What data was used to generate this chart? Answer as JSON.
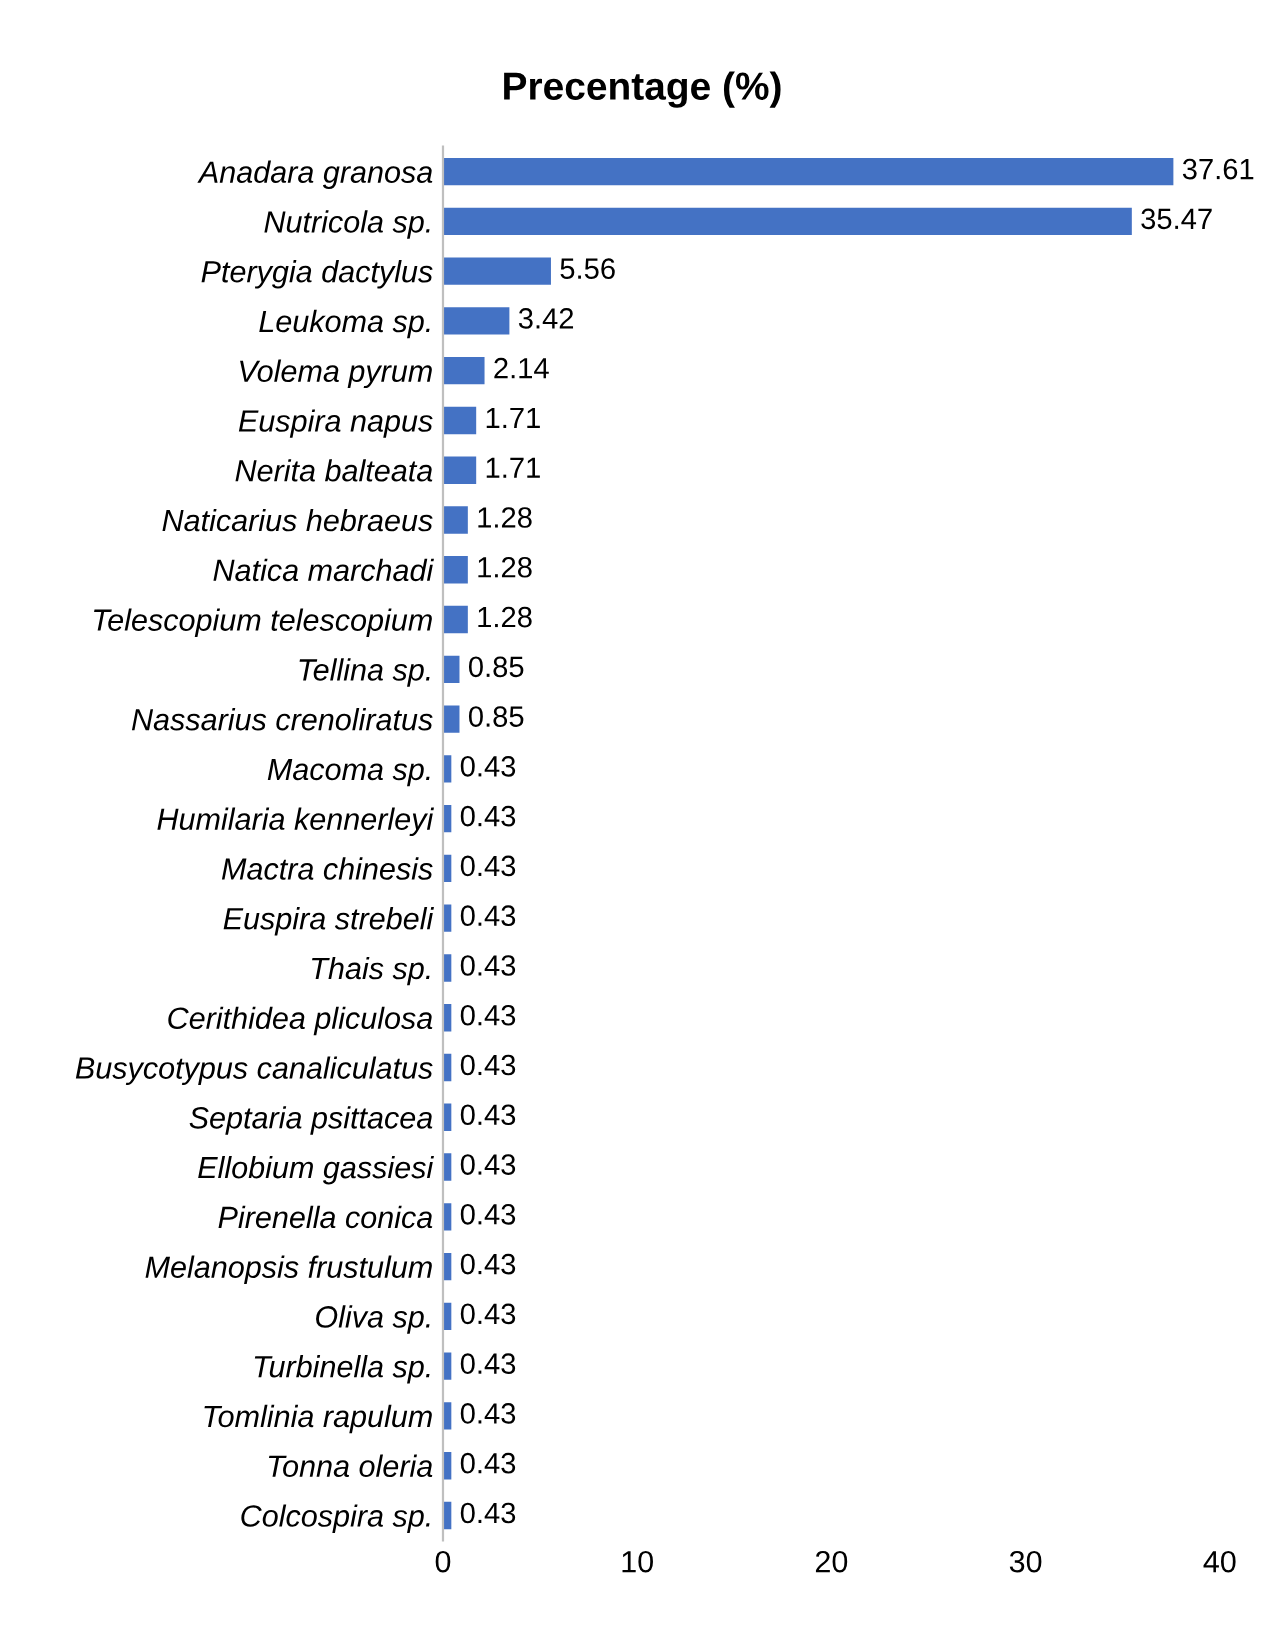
{
  "chart_data": {
    "type": "bar",
    "orientation": "horizontal",
    "title": "Precentage (%)",
    "categories": [
      "Anadara granosa",
      "Nutricola sp.",
      "Pterygia dactylus",
      "Leukoma sp.",
      "Volema pyrum",
      "Euspira napus",
      "Nerita balteata",
      "Naticarius hebraeus",
      "Natica marchadi",
      "Telescopium telescopium",
      "Tellina sp.",
      "Nassarius crenoliratus",
      "Macoma sp.",
      "Humilaria kennerleyi",
      "Mactra chinesis",
      "Euspira strebeli",
      "Thais sp.",
      "Cerithidea pliculosa",
      "Busycotypus canaliculatus",
      "Septaria psittacea",
      "Ellobium gassiesi",
      "Pirenella conica",
      "Melanopsis frustulum",
      "Oliva sp.",
      "Turbinella sp.",
      "Tomlinia rapulum",
      "Tonna oleria",
      "Colcospira sp."
    ],
    "values": [
      37.61,
      35.47,
      5.56,
      3.42,
      2.14,
      1.71,
      1.71,
      1.28,
      1.28,
      1.28,
      0.85,
      0.85,
      0.43,
      0.43,
      0.43,
      0.43,
      0.43,
      0.43,
      0.43,
      0.43,
      0.43,
      0.43,
      0.43,
      0.43,
      0.43,
      0.43,
      0.43,
      0.43
    ],
    "color": "#4472c4",
    "xlim": [
      0,
      40
    ],
    "xticks": [
      0,
      10,
      20,
      30,
      40
    ],
    "data_labels": true,
    "grid": false
  }
}
